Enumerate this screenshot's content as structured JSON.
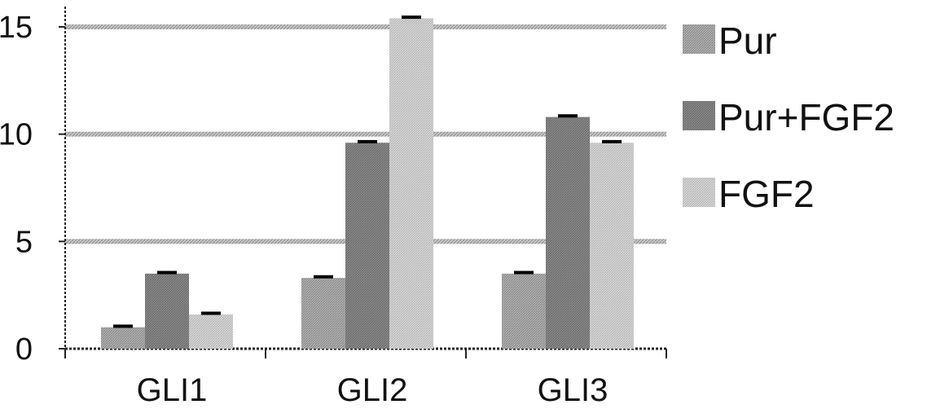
{
  "chart_data": {
    "type": "bar",
    "categories": [
      "GLI1",
      "GLI2",
      "GLI3"
    ],
    "series": [
      {
        "name": "Pur",
        "values": [
          1.0,
          3.3,
          3.5
        ],
        "errors": [
          0.05,
          0.05,
          0.05
        ]
      },
      {
        "name": "Pur+FGF2",
        "values": [
          3.5,
          9.6,
          10.8
        ],
        "errors": [
          0.05,
          0.05,
          0.05
        ]
      },
      {
        "name": "FGF2",
        "values": [
          1.6,
          15.4,
          9.6
        ],
        "errors": [
          0.05,
          0.05,
          0.05
        ]
      }
    ],
    "yticks": [
      "0",
      "5",
      "10",
      "15"
    ],
    "ylim": [
      0,
      16
    ],
    "grid": true,
    "legend_position": "right",
    "colors": {
      "Pur": "#b4b4b4",
      "Pur+FGF2": "#8c8c8c",
      "FGF2": "#dadada",
      "grid": "#9a9a9a",
      "axis": "#222222"
    }
  }
}
